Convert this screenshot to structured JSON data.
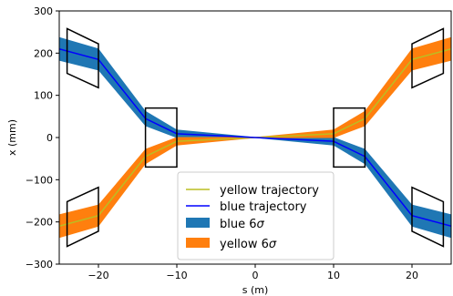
{
  "chart_data": {
    "type": "line",
    "title": "",
    "xlabel": "s (m)",
    "ylabel": "x (mm)",
    "xlim": [
      -25,
      25
    ],
    "ylim": [
      -300,
      300
    ],
    "xticks": [
      -20,
      -10,
      0,
      10,
      20
    ],
    "xtick_labels": [
      "−20",
      "−10",
      "0",
      "10",
      "20"
    ],
    "yticks": [
      -300,
      -200,
      -100,
      0,
      100,
      200,
      300
    ],
    "ytick_labels": [
      "−300",
      "−200",
      "−100",
      "0",
      "100",
      "200",
      "300"
    ],
    "grid": false,
    "legend_position": "lower-center",
    "series": [
      {
        "name": "yellow trajectory",
        "kind": "line",
        "color": "#bcbd22",
        "x": [
          -25,
          -20,
          -14,
          -10,
          0,
          10,
          14,
          20,
          25
        ],
        "y": [
          -210,
          -185,
          -45,
          -9,
          0,
          9,
          45,
          185,
          210
        ]
      },
      {
        "name": "blue trajectory",
        "kind": "line",
        "color": "#0000ff",
        "x": [
          -25,
          -20,
          -14,
          -10,
          0,
          10,
          14,
          20,
          25
        ],
        "y": [
          210,
          185,
          45,
          9,
          0,
          -9,
          -45,
          -185,
          -210
        ]
      },
      {
        "name": "blue 6σ",
        "kind": "band",
        "color": "#1f77b4",
        "x": [
          -25,
          -20,
          -14,
          -10,
          0,
          10,
          14,
          20,
          25
        ],
        "y_center": [
          210,
          185,
          45,
          9,
          0,
          -9,
          -45,
          -185,
          -210
        ],
        "half_width": [
          28,
          26,
          18,
          10,
          1,
          10,
          18,
          26,
          28
        ]
      },
      {
        "name": "yellow 6σ",
        "kind": "band",
        "color": "#ff7f0e",
        "x": [
          -25,
          -20,
          -14,
          -10,
          0,
          10,
          14,
          20,
          25
        ],
        "y_center": [
          -210,
          -185,
          -45,
          -9,
          0,
          9,
          45,
          185,
          210
        ],
        "half_width": [
          28,
          26,
          18,
          10,
          1,
          10,
          18,
          26,
          28
        ]
      }
    ],
    "annotations": [
      {
        "kind": "parallelogram",
        "corners": [
          [
            -24,
            258
          ],
          [
            -20,
            222
          ],
          [
            -20,
            118
          ],
          [
            -24,
            152
          ]
        ]
      },
      {
        "kind": "parallelogram",
        "corners": [
          [
            -24,
            -152
          ],
          [
            -20,
            -118
          ],
          [
            -20,
            -222
          ],
          [
            -24,
            -258
          ]
        ]
      },
      {
        "kind": "rectangle",
        "corners": [
          [
            -14,
            70
          ],
          [
            -10,
            70
          ],
          [
            -10,
            -70
          ],
          [
            -14,
            -70
          ]
        ]
      },
      {
        "kind": "rectangle",
        "corners": [
          [
            10,
            70
          ],
          [
            14,
            70
          ],
          [
            14,
            -70
          ],
          [
            10,
            -70
          ]
        ]
      },
      {
        "kind": "parallelogram",
        "corners": [
          [
            20,
            222
          ],
          [
            24,
            258
          ],
          [
            24,
            152
          ],
          [
            20,
            118
          ]
        ]
      },
      {
        "kind": "parallelogram",
        "corners": [
          [
            20,
            -118
          ],
          [
            24,
            -152
          ],
          [
            24,
            -258
          ],
          [
            20,
            -222
          ]
        ]
      }
    ],
    "legend_labels": {
      "yellow_traj": "yellow trajectory",
      "blue_traj": "blue trajectory",
      "blue_band": "blue 6",
      "yellow_band": "yellow 6",
      "sigma": "σ"
    }
  }
}
